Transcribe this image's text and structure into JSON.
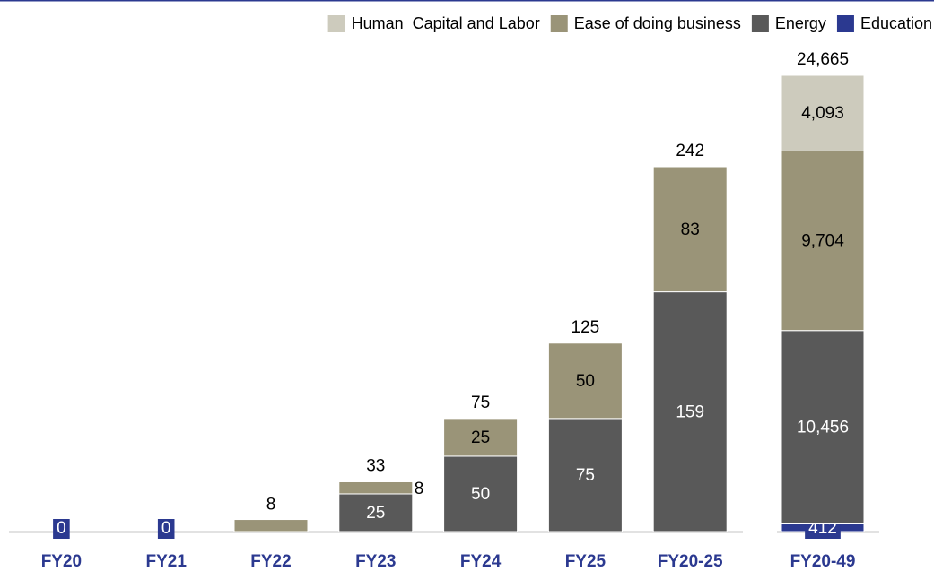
{
  "chart_data": [
    {
      "type": "bar",
      "stacked": true,
      "categories": [
        "FY20",
        "FY21",
        "FY22",
        "FY23",
        "FY24",
        "FY25",
        "FY20-25"
      ],
      "series": [
        {
          "name": "Education",
          "color": "#2b3990",
          "values": [
            0,
            0,
            null,
            null,
            null,
            null,
            null
          ]
        },
        {
          "name": "Energy",
          "color": "#595959",
          "values": [
            null,
            null,
            null,
            25,
            50,
            75,
            159
          ]
        },
        {
          "name": "Ease of doing business",
          "color": "#9a9478",
          "values": [
            null,
            null,
            8,
            8,
            25,
            50,
            83
          ]
        },
        {
          "name": "Human  Capital and Labor",
          "color": "#cdcbbd",
          "values": [
            null,
            null,
            null,
            null,
            null,
            null,
            null
          ]
        }
      ],
      "totals": [
        null,
        null,
        null,
        33,
        75,
        125,
        242
      ]
    },
    {
      "type": "bar",
      "stacked": true,
      "categories": [
        "FY20-49"
      ],
      "series": [
        {
          "color": "#2b3990",
          "values": [
            412
          ]
        },
        {
          "color": "#595959",
          "values": [
            10456
          ],
          "value_labels": [
            "10,456"
          ]
        },
        {
          "color": "#9a9478",
          "values": [
            9704
          ],
          "value_labels": [
            "9,704"
          ]
        },
        {
          "color": "#cdcbbd",
          "values": [
            4093
          ],
          "value_labels": [
            "4,093"
          ]
        }
      ],
      "totals": [
        24665
      ],
      "total_labels": [
        "24,665"
      ]
    }
  ]
}
